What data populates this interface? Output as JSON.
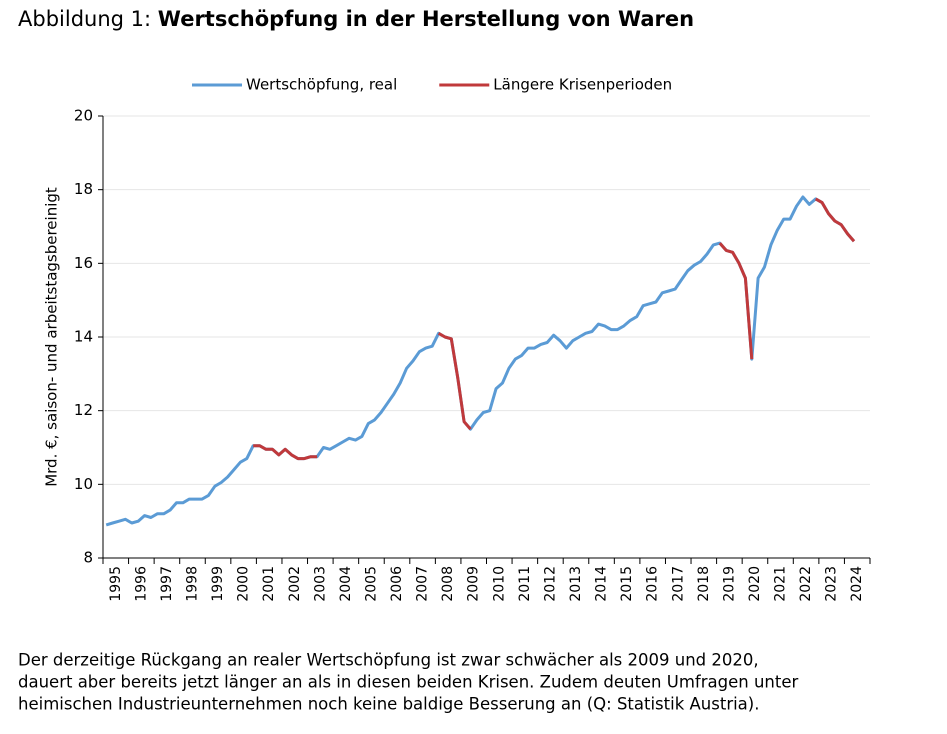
{
  "chart_data": {
    "type": "line",
    "figure_label": "Abbildung 1:",
    "title": "Wertschöpfung in der Herstellung von Waren",
    "ylabel": "Mrd. €, saison- und arbeitstagsbereinigt",
    "categories": [
      "1995",
      null,
      null,
      null,
      "1996",
      null,
      null,
      null,
      "1997",
      null,
      null,
      null,
      "1998",
      null,
      null,
      null,
      "1999",
      null,
      null,
      null,
      "2000",
      null,
      null,
      null,
      "2001",
      null,
      null,
      null,
      "2002",
      null,
      null,
      null,
      "2003",
      null,
      null,
      null,
      "2004",
      null,
      null,
      null,
      "2005",
      null,
      null,
      null,
      "2006",
      null,
      null,
      null,
      "2007",
      null,
      null,
      null,
      "2008",
      null,
      null,
      null,
      "2009",
      null,
      null,
      null,
      "2010",
      null,
      null,
      null,
      "2011",
      null,
      null,
      null,
      "2012",
      null,
      null,
      null,
      "2013",
      null,
      null,
      null,
      "2014",
      null,
      null,
      null,
      "2015",
      null,
      null,
      null,
      "2016",
      null,
      null,
      null,
      "2017",
      null,
      null,
      null,
      "2018",
      null,
      null,
      null,
      "2019",
      null,
      null,
      null,
      "2020",
      null,
      null,
      null,
      "2021",
      null,
      null,
      null,
      "2022",
      null,
      null,
      null,
      "2023",
      null,
      null,
      null,
      "2024",
      null
    ],
    "series": [
      {
        "name": "Wertschöpfung, real",
        "color": "#5b9bd5",
        "values": [
          8.9,
          8.95,
          9.0,
          9.05,
          8.95,
          9.0,
          9.15,
          9.1,
          9.2,
          9.2,
          9.3,
          9.5,
          9.5,
          9.6,
          9.6,
          9.6,
          9.7,
          9.95,
          10.05,
          10.2,
          10.4,
          10.6,
          10.7,
          11.05,
          11.05,
          10.95,
          10.95,
          10.8,
          10.95,
          10.8,
          10.7,
          10.7,
          10.75,
          10.75,
          11.0,
          10.95,
          11.05,
          11.15,
          11.25,
          11.2,
          11.3,
          11.65,
          11.75,
          11.95,
          12.2,
          12.45,
          12.75,
          13.15,
          13.35,
          13.6,
          13.7,
          13.75,
          14.1,
          14.0,
          13.95,
          12.9,
          11.7,
          11.5,
          11.75,
          11.95,
          12.0,
          12.6,
          12.75,
          13.15,
          13.4,
          13.5,
          13.7,
          13.7,
          13.8,
          13.85,
          14.05,
          13.9,
          13.7,
          13.9,
          14.0,
          14.1,
          14.15,
          14.35,
          14.3,
          14.2,
          14.2,
          14.3,
          14.45,
          14.55,
          14.85,
          14.9,
          14.95,
          15.2,
          15.25,
          15.3,
          15.55,
          15.8,
          15.95,
          16.05,
          16.25,
          16.5,
          16.55,
          16.35,
          16.3,
          16.0,
          15.6,
          13.4,
          15.6,
          15.9,
          16.5,
          16.9,
          17.2,
          17.2,
          17.55,
          17.8,
          17.6,
          17.75,
          17.65,
          17.35,
          17.15,
          17.05,
          16.8,
          16.6
        ]
      },
      {
        "name": "Längere Krisenperioden",
        "color": "#c0393b",
        "values": [
          null,
          null,
          null,
          null,
          null,
          null,
          null,
          null,
          null,
          null,
          null,
          null,
          null,
          null,
          null,
          null,
          null,
          null,
          null,
          null,
          null,
          null,
          null,
          11.05,
          11.05,
          10.95,
          10.95,
          10.8,
          10.95,
          10.8,
          10.7,
          10.7,
          10.75,
          10.75,
          null,
          null,
          null,
          null,
          null,
          null,
          null,
          null,
          null,
          null,
          null,
          null,
          null,
          null,
          null,
          null,
          null,
          null,
          14.1,
          14.0,
          13.95,
          12.9,
          11.7,
          11.5,
          null,
          null,
          null,
          null,
          null,
          null,
          null,
          null,
          null,
          null,
          null,
          null,
          null,
          null,
          null,
          null,
          null,
          null,
          null,
          null,
          null,
          null,
          null,
          null,
          null,
          null,
          null,
          null,
          null,
          null,
          null,
          null,
          null,
          null,
          null,
          null,
          null,
          null,
          16.55,
          16.35,
          16.3,
          16.0,
          15.6,
          13.4,
          null,
          null,
          null,
          null,
          null,
          null,
          null,
          null,
          null,
          17.75,
          17.65,
          17.35,
          17.15,
          17.05,
          16.8,
          16.6
        ]
      }
    ],
    "ylim": [
      8,
      20
    ],
    "yticks": [
      8,
      10,
      12,
      14,
      16,
      18,
      20
    ],
    "grid": true,
    "legend": "top",
    "caption": [
      "Der derzeitige Rückgang an realer Wertschöpfung ist zwar schwächer als 2009 und 2020,",
      "dauert aber bereits jetzt länger an als in diesen beiden Krisen. Zudem deuten Umfragen unter",
      "heimischen Industrieunternehmen noch keine baldige Besserung an (Q: Statistik Austria)."
    ]
  }
}
